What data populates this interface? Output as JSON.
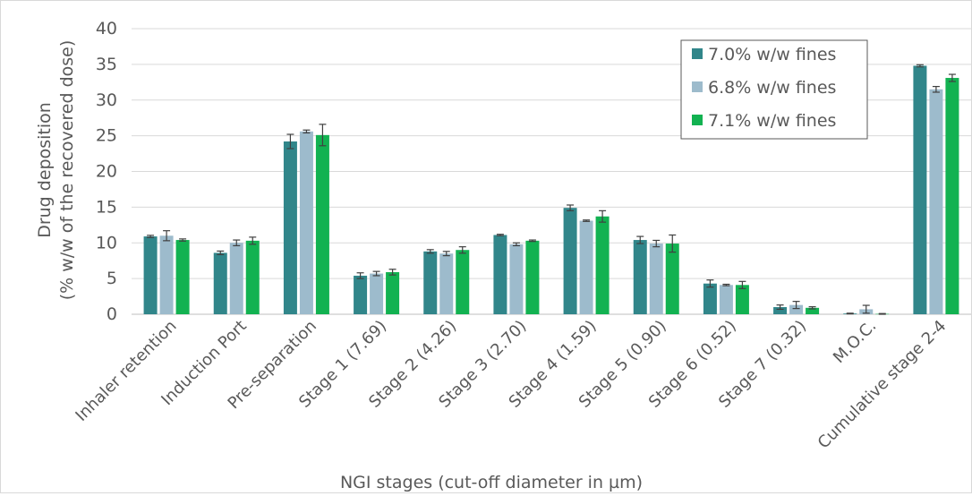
{
  "chart_data": {
    "type": "bar",
    "title": "",
    "xlabel": "NGI stages (cut-off diameter in µm)",
    "ylabel_line1": "Drug deposition",
    "ylabel_line2": "(% w/w of the recovered dose)",
    "ylim": [
      0,
      40
    ],
    "yticks": [
      0,
      5,
      10,
      15,
      20,
      25,
      30,
      35,
      40
    ],
    "grid": "horizontal",
    "legend_position": "top-right",
    "categories": [
      "Inhaler retention",
      "Induction Port",
      "Pre-separation",
      "Stage 1 (7.69)",
      "Stage 2 (4.26)",
      "Stage 3 (2.70)",
      "Stage 4 (1.59)",
      "Stage 5 (0.90)",
      "Stage 6 (0.52)",
      "Stage 7 (0.32)",
      "M.O.C.",
      "Cumulative stage 2-4"
    ],
    "series": [
      {
        "name": "7.0% w/w fines",
        "color": "#31868a",
        "values": [
          10.9,
          8.6,
          24.2,
          5.4,
          8.8,
          11.1,
          14.9,
          10.4,
          4.3,
          1.0,
          0.1,
          34.8
        ],
        "errors": [
          0.15,
          0.25,
          1.0,
          0.4,
          0.25,
          0.1,
          0.4,
          0.5,
          0.5,
          0.3,
          0.05,
          0.15
        ]
      },
      {
        "name": "6.8% w/w fines",
        "color": "#9dbbcc",
        "values": [
          11.0,
          10.0,
          25.6,
          5.7,
          8.5,
          9.8,
          13.1,
          9.9,
          4.1,
          1.3,
          0.7,
          31.5
        ],
        "errors": [
          0.7,
          0.4,
          0.2,
          0.3,
          0.3,
          0.2,
          0.1,
          0.45,
          0.1,
          0.5,
          0.55,
          0.4
        ]
      },
      {
        "name": "7.1% w/w fines",
        "color": "#12b251",
        "values": [
          10.4,
          10.3,
          25.1,
          5.9,
          9.0,
          10.3,
          13.7,
          9.9,
          4.1,
          0.9,
          0.05,
          33.1
        ],
        "errors": [
          0.15,
          0.5,
          1.5,
          0.4,
          0.45,
          0.1,
          0.8,
          1.2,
          0.5,
          0.15,
          0.05,
          0.5
        ]
      }
    ]
  }
}
